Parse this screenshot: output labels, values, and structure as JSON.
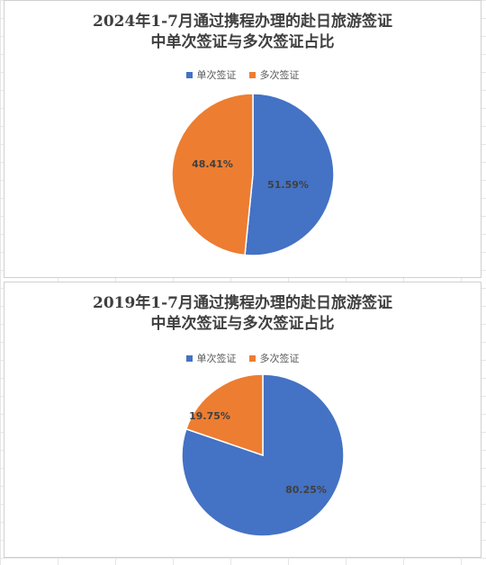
{
  "chart_data": [
    {
      "type": "pie",
      "title_line1": "2024年1-7月通过携程办理的赴日旅游签证",
      "title_line2": "中单次签证与多次签证占比",
      "categories": [
        "单次签证",
        "多次签证"
      ],
      "values": [
        51.59,
        48.41
      ],
      "value_labels": [
        "51.59%",
        "48.41%"
      ],
      "colors": [
        "#4472C4",
        "#ED7D31"
      ],
      "legend_position": "top",
      "start_angle_deg": 0,
      "direction": "clockwise"
    },
    {
      "type": "pie",
      "title_line1": "2019年1-7月通过携程办理的赴日旅游签证",
      "title_line2": "中单次签证与多次签证占比",
      "categories": [
        "单次签证",
        "多次签证"
      ],
      "values": [
        80.25,
        19.75
      ],
      "value_labels": [
        "80.25%",
        "19.75%"
      ],
      "colors": [
        "#4472C4",
        "#ED7D31"
      ],
      "legend_position": "top",
      "start_angle_deg": 0,
      "direction": "clockwise"
    }
  ]
}
